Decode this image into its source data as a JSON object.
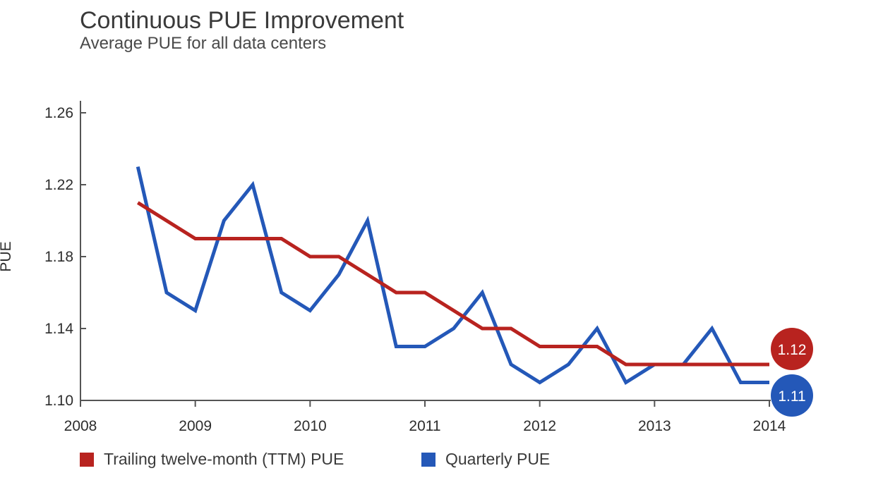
{
  "chart_data": {
    "type": "line",
    "title": "Continuous PUE Improvement",
    "subtitle": "Average PUE for all data centers",
    "ylabel": "PUE",
    "xlabel": "",
    "xlim": [
      2008,
      2014
    ],
    "ylim": [
      1.1,
      1.26
    ],
    "x_ticks": [
      "2008",
      "2009",
      "2010",
      "2011",
      "2012",
      "2013",
      "2014"
    ],
    "y_ticks": [
      "1.10",
      "1.14",
      "1.18",
      "1.22",
      "1.26"
    ],
    "grid": false,
    "legend_position": "bottom-left",
    "series": [
      {
        "name": "Trailing twelve-month (TTM) PUE",
        "color": "#b8231f",
        "end_label": "1.12",
        "x": [
          2008.5,
          2008.75,
          2009.0,
          2009.25,
          2009.5,
          2009.75,
          2010.0,
          2010.25,
          2010.5,
          2010.75,
          2011.0,
          2011.25,
          2011.5,
          2011.75,
          2012.0,
          2012.25,
          2012.5,
          2012.75,
          2013.0,
          2013.25,
          2013.5,
          2013.75,
          2014.0
        ],
        "values": [
          1.21,
          1.2,
          1.19,
          1.19,
          1.19,
          1.19,
          1.18,
          1.18,
          1.17,
          1.16,
          1.16,
          1.15,
          1.14,
          1.14,
          1.13,
          1.13,
          1.13,
          1.12,
          1.12,
          1.12,
          1.12,
          1.12,
          1.12
        ]
      },
      {
        "name": "Quarterly PUE",
        "color": "#2458b8",
        "end_label": "1.11",
        "x": [
          2008.5,
          2008.75,
          2009.0,
          2009.25,
          2009.5,
          2009.75,
          2010.0,
          2010.25,
          2010.5,
          2010.75,
          2011.0,
          2011.25,
          2011.5,
          2011.75,
          2012.0,
          2012.25,
          2012.5,
          2012.75,
          2013.0,
          2013.25,
          2013.5,
          2013.75,
          2014.0
        ],
        "values": [
          1.23,
          1.16,
          1.15,
          1.2,
          1.22,
          1.16,
          1.15,
          1.17,
          1.2,
          1.13,
          1.13,
          1.14,
          1.16,
          1.12,
          1.11,
          1.12,
          1.14,
          1.11,
          1.12,
          1.12,
          1.14,
          1.11,
          1.11
        ]
      }
    ]
  }
}
